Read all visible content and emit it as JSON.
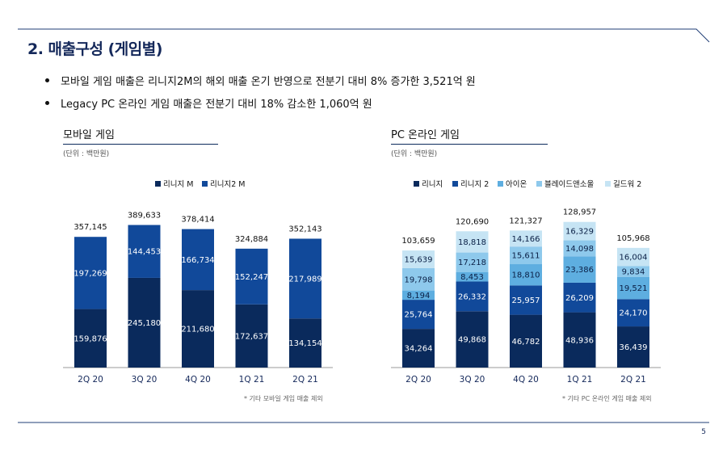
{
  "page": {
    "title": "2. 매출구성 (게임별)",
    "bullets": [
      "모바일 게임 매출은 리니지2M의 해외 매출 온기 반영으로 전분기 대비 8% 증가한 3,521억 원",
      "Legacy PC 온라인 게임 매출은 전분기 대비 18% 감소한 1,060억 원"
    ],
    "page_number": "5"
  },
  "colors": {
    "navy_dark": "#0a2a5c",
    "blue_mid": "#11499a",
    "blue_light": "#5eaee0",
    "blue_lighter": "#8ec9ec",
    "blue_pale": "#c6e4f4",
    "title": "#14285a",
    "rule": "#1f3d75"
  },
  "chart_data": [
    {
      "type": "bar",
      "stacked": true,
      "title": "모바일 게임",
      "unit_note": "(단위 : 백만원)",
      "footnote": "* 기타 모바일 게임 매출 제외",
      "legend_position": "top",
      "categories": [
        "2Q 20",
        "3Q 20",
        "4Q 20",
        "1Q 21",
        "2Q 21"
      ],
      "series": [
        {
          "name": "리니지 M",
          "color": "#0a2a5c",
          "values": [
            159876,
            245180,
            211680,
            172637,
            134154
          ],
          "labels": [
            "159,876",
            "245,180",
            "211,680",
            "172,637",
            "134,154"
          ]
        },
        {
          "name": "리니지2 M",
          "color": "#11499a",
          "values": [
            197269,
            144453,
            166734,
            152247,
            217989
          ],
          "labels": [
            "197,269",
            "144,453",
            "166,734",
            "152,247",
            "217,989"
          ]
        }
      ],
      "totals": [
        "357,145",
        "389,633",
        "378,414",
        "324,884",
        "352,143"
      ],
      "ylim": [
        0,
        400000
      ]
    },
    {
      "type": "bar",
      "stacked": true,
      "title": "PC 온라인 게임",
      "unit_note": "(단위 : 백만원)",
      "footnote": "* 기타 PC 온라인 게임 매출 제외",
      "legend_position": "top",
      "categories": [
        "2Q 20",
        "3Q 20",
        "4Q 20",
        "1Q 21",
        "2Q 21"
      ],
      "series": [
        {
          "name": "리니지",
          "color": "#0a2a5c",
          "values": [
            34264,
            49868,
            46782,
            48936,
            36439
          ],
          "labels": [
            "34,264",
            "49,868",
            "46,782",
            "48,936",
            "36,439"
          ]
        },
        {
          "name": "리니지 2",
          "color": "#11499a",
          "values": [
            25764,
            26332,
            25957,
            26209,
            24170
          ],
          "labels": [
            "25,764",
            "26,332",
            "25,957",
            "26,209",
            "24,170"
          ]
        },
        {
          "name": "아이온",
          "color": "#5eaee0",
          "values": [
            8194,
            8453,
            18810,
            23386,
            19521
          ],
          "labels": [
            "8,194",
            "8,453",
            "18,810",
            "23,386",
            "19,521"
          ]
        },
        {
          "name": "블레이드앤소울",
          "color": "#8ec9ec",
          "values": [
            19798,
            17218,
            15611,
            14098,
            9834
          ],
          "labels": [
            "19,798",
            "17,218",
            "15,611",
            "14,098",
            "9,834"
          ]
        },
        {
          "name": "길드워 2",
          "color": "#c6e4f4",
          "values": [
            15639,
            18818,
            14166,
            16329,
            16004
          ],
          "labels": [
            "15,639",
            "18,818",
            "14,166",
            "16,329",
            "16,004"
          ]
        }
      ],
      "totals": [
        "103,659",
        "120,690",
        "121,327",
        "128,957",
        "105,968"
      ],
      "ylim": [
        0,
        130000
      ]
    }
  ]
}
